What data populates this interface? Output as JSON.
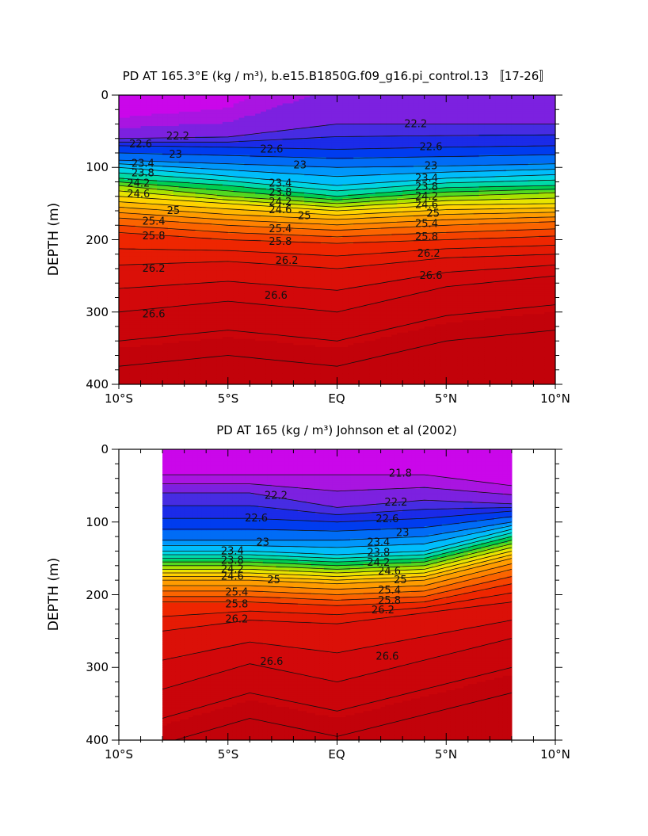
{
  "chart_data": [
    {
      "type": "heatmap",
      "title": "PD AT 165.3°E (kg / m³), b.e15.B1850G.f09_g16.pi_control.13 〚17-26〛",
      "xlabel": "",
      "ylabel": "DEPTH (m)",
      "xlim": [
        -10,
        10
      ],
      "ylim": [
        400,
        0
      ],
      "data_x_range": [
        -10,
        10
      ],
      "x_tick_labels": [
        "10°S",
        "5°S",
        "EQ",
        "5°N",
        "10°N"
      ],
      "x_tick_values": [
        -10,
        -5,
        0,
        5,
        10
      ],
      "y_tick_labels": [
        "0",
        "100",
        "200",
        "300",
        "400"
      ],
      "y_tick_values": [
        0,
        100,
        200,
        300,
        400
      ],
      "contour_interval": 0.2,
      "contour_levels_labeled": [
        "22.2",
        "22.6",
        "23",
        "23.4",
        "23.8",
        "24.2",
        "24.6",
        "25",
        "25.4",
        "25.8",
        "26.2",
        "26.6"
      ],
      "isopycnal_depth_profiles": [
        {
          "level": 22.2,
          "x": [
            -10,
            -5,
            0,
            5,
            10
          ],
          "depth": [
            60,
            58,
            40,
            40,
            40
          ]
        },
        {
          "level": 22.6,
          "x": [
            -10,
            -5,
            0,
            5,
            10
          ],
          "depth": [
            70,
            72,
            75,
            72,
            70
          ]
        },
        {
          "level": 23.0,
          "x": [
            -10,
            -5,
            0,
            5,
            10
          ],
          "depth": [
            90,
            95,
            100,
            98,
            95
          ]
        },
        {
          "level": 23.4,
          "x": [
            -10,
            -5,
            0,
            5,
            10
          ],
          "depth": [
            100,
            112,
            125,
            115,
            110
          ]
        },
        {
          "level": 23.8,
          "x": [
            -10,
            -5,
            0,
            5,
            10
          ],
          "depth": [
            115,
            125,
            140,
            128,
            125
          ]
        },
        {
          "level": 24.2,
          "x": [
            -10,
            -5,
            0,
            5,
            10
          ],
          "depth": [
            125,
            140,
            150,
            140,
            135
          ]
        },
        {
          "level": 24.6,
          "x": [
            -10,
            -5,
            0,
            5,
            10
          ],
          "depth": [
            140,
            150,
            160,
            152,
            150
          ]
        },
        {
          "level": 25.0,
          "x": [
            -10,
            -5,
            0,
            5,
            10
          ],
          "depth": [
            155,
            165,
            172,
            165,
            162
          ]
        },
        {
          "level": 25.4,
          "x": [
            -10,
            -5,
            0,
            5,
            10
          ],
          "depth": [
            170,
            180,
            187,
            180,
            175
          ]
        },
        {
          "level": 25.8,
          "x": [
            -10,
            -5,
            0,
            5,
            10
          ],
          "depth": [
            190,
            200,
            205,
            200,
            195
          ]
        },
        {
          "level": 26.2,
          "x": [
            -10,
            -5,
            0,
            5,
            10
          ],
          "depth": [
            235,
            230,
            240,
            225,
            220
          ]
        },
        {
          "level": 26.6,
          "x": [
            -10,
            -5,
            0,
            5,
            10
          ],
          "depth": [
            300,
            285,
            300,
            265,
            250
          ]
        }
      ]
    },
    {
      "type": "heatmap",
      "title": "PD AT 165 (kg / m³) Johnson et al (2002)",
      "xlabel": "",
      "ylabel": "DEPTH (m)",
      "xlim": [
        -10,
        10
      ],
      "ylim": [
        400,
        0
      ],
      "data_x_range": [
        -8,
        8
      ],
      "x_tick_labels": [
        "10°S",
        "5°S",
        "EQ",
        "5°N",
        "10°N"
      ],
      "x_tick_values": [
        -10,
        -5,
        0,
        5,
        10
      ],
      "y_tick_labels": [
        "0",
        "100",
        "200",
        "300",
        "400"
      ],
      "y_tick_values": [
        0,
        100,
        200,
        300,
        400
      ],
      "contour_interval": 0.2,
      "contour_levels_labeled": [
        "21.8",
        "22.2",
        "22.6",
        "23",
        "23.4",
        "23.8",
        "24.2",
        "24.6",
        "25",
        "25.4",
        "25.8",
        "26.2",
        "26.6"
      ],
      "isopycnal_depth_profiles": [
        {
          "level": 21.8,
          "x": [
            -8,
            -4,
            0,
            4,
            8
          ],
          "depth": [
            35,
            35,
            35,
            35,
            50
          ]
        },
        {
          "level": 22.2,
          "x": [
            -8,
            -4,
            0,
            4,
            8
          ],
          "depth": [
            60,
            60,
            80,
            70,
            75
          ]
        },
        {
          "level": 22.6,
          "x": [
            -8,
            -4,
            0,
            4,
            8
          ],
          "depth": [
            95,
            95,
            100,
            95,
            85
          ]
        },
        {
          "level": 23.0,
          "x": [
            -8,
            -4,
            0,
            4,
            8
          ],
          "depth": [
            125,
            125,
            125,
            120,
            100
          ]
        },
        {
          "level": 23.4,
          "x": [
            -8,
            -4,
            0,
            4,
            8
          ],
          "depth": [
            140,
            140,
            145,
            140,
            110
          ]
        },
        {
          "level": 23.8,
          "x": [
            -8,
            -4,
            0,
            4,
            8
          ],
          "depth": [
            150,
            150,
            155,
            150,
            120
          ]
        },
        {
          "level": 24.2,
          "x": [
            -8,
            -4,
            0,
            4,
            8
          ],
          "depth": [
            160,
            160,
            165,
            160,
            130
          ]
        },
        {
          "level": 24.6,
          "x": [
            -8,
            -4,
            0,
            4,
            8
          ],
          "depth": [
            170,
            170,
            175,
            170,
            140
          ]
        },
        {
          "level": 25.0,
          "x": [
            -8,
            -4,
            0,
            4,
            8
          ],
          "depth": [
            180,
            180,
            185,
            180,
            150
          ]
        },
        {
          "level": 25.4,
          "x": [
            -8,
            -4,
            0,
            4,
            8
          ],
          "depth": [
            195,
            195,
            200,
            195,
            165
          ]
        },
        {
          "level": 25.8,
          "x": [
            -8,
            -4,
            0,
            4,
            8
          ],
          "depth": [
            210,
            210,
            215,
            210,
            185
          ]
        },
        {
          "level": 26.2,
          "x": [
            -8,
            -4,
            0,
            4,
            8
          ],
          "depth": [
            250,
            235,
            240,
            225,
            210
          ]
        },
        {
          "level": 26.6,
          "x": [
            -8,
            -4,
            0,
            4,
            8
          ],
          "depth": [
            330,
            295,
            320,
            290,
            260
          ]
        }
      ]
    }
  ],
  "panels": [
    {
      "title": "PD AT 165.3°E (kg / m³), b.e15.B1850G.f09_g16.pi_control.13 〚17-26〛",
      "ylabel": "DEPTH (m)",
      "x_ticks": [
        "10°S",
        "5°S",
        "EQ",
        "5°N",
        "10°N"
      ],
      "y_ticks": [
        "0",
        "100",
        "200",
        "300",
        "400"
      ],
      "contour_labels": [
        {
          "text": "22.2",
          "x": -7.3,
          "d": 57
        },
        {
          "text": "22.2",
          "x": 3.6,
          "d": 40
        },
        {
          "text": "22.6",
          "x": -9.0,
          "d": 68
        },
        {
          "text": "22.6",
          "x": -3.0,
          "d": 75
        },
        {
          "text": "22.6",
          "x": 4.3,
          "d": 72
        },
        {
          "text": "23",
          "x": -7.4,
          "d": 82
        },
        {
          "text": "23",
          "x": -1.7,
          "d": 97
        },
        {
          "text": "23",
          "x": 4.3,
          "d": 98
        },
        {
          "text": "23.4",
          "x": -8.9,
          "d": 95
        },
        {
          "text": "23.4",
          "x": -2.6,
          "d": 122
        },
        {
          "text": "23.4",
          "x": 4.1,
          "d": 115
        },
        {
          "text": "23.8",
          "x": -8.9,
          "d": 108
        },
        {
          "text": "23.8",
          "x": -2.6,
          "d": 135
        },
        {
          "text": "23.8",
          "x": 4.1,
          "d": 127
        },
        {
          "text": "24.2",
          "x": -9.1,
          "d": 122
        },
        {
          "text": "24.2",
          "x": -2.6,
          "d": 148
        },
        {
          "text": "24.2",
          "x": 4.1,
          "d": 140
        },
        {
          "text": "24.6",
          "x": -9.1,
          "d": 137
        },
        {
          "text": "24.6",
          "x": -2.6,
          "d": 159
        },
        {
          "text": "24.6",
          "x": 4.1,
          "d": 152
        },
        {
          "text": "25",
          "x": -7.5,
          "d": 160
        },
        {
          "text": "25",
          "x": -1.5,
          "d": 167
        },
        {
          "text": "25",
          "x": 4.4,
          "d": 164
        },
        {
          "text": "25.4",
          "x": -8.4,
          "d": 175
        },
        {
          "text": "25.4",
          "x": -2.6,
          "d": 185
        },
        {
          "text": "25.4",
          "x": 4.1,
          "d": 178
        },
        {
          "text": "25.8",
          "x": -8.4,
          "d": 195
        },
        {
          "text": "25.8",
          "x": -2.6,
          "d": 203
        },
        {
          "text": "25.8",
          "x": 4.1,
          "d": 196
        },
        {
          "text": "26.2",
          "x": -8.4,
          "d": 240
        },
        {
          "text": "26.2",
          "x": -2.3,
          "d": 229
        },
        {
          "text": "26.2",
          "x": 4.2,
          "d": 219
        },
        {
          "text": "26.6",
          "x": -8.4,
          "d": 303
        },
        {
          "text": "26.6",
          "x": -2.8,
          "d": 277
        },
        {
          "text": "26.6",
          "x": 4.3,
          "d": 250
        }
      ]
    },
    {
      "title": "PD AT 165 (kg / m³) Johnson et al (2002)",
      "ylabel": "DEPTH (m)",
      "x_ticks": [
        "10°S",
        "5°S",
        "EQ",
        "5°N",
        "10°N"
      ],
      "y_ticks": [
        "0",
        "100",
        "200",
        "300",
        "400"
      ],
      "contour_labels": [
        {
          "text": "21.8",
          "x": 2.9,
          "d": 33
        },
        {
          "text": "22.2",
          "x": -2.8,
          "d": 64
        },
        {
          "text": "22.2",
          "x": 2.7,
          "d": 73
        },
        {
          "text": "22.6",
          "x": -3.7,
          "d": 95
        },
        {
          "text": "22.6",
          "x": 2.3,
          "d": 96
        },
        {
          "text": "23",
          "x": 3.0,
          "d": 115
        },
        {
          "text": "23",
          "x": -3.4,
          "d": 128
        },
        {
          "text": "23.4",
          "x": 1.9,
          "d": 128
        },
        {
          "text": "23.4",
          "x": -4.8,
          "d": 140
        },
        {
          "text": "23.8",
          "x": 1.9,
          "d": 142
        },
        {
          "text": "23.8",
          "x": -4.8,
          "d": 153
        },
        {
          "text": "24.2",
          "x": 1.9,
          "d": 156
        },
        {
          "text": "24.2",
          "x": -4.8,
          "d": 165
        },
        {
          "text": "24.6",
          "x": 2.4,
          "d": 168
        },
        {
          "text": "24.6",
          "x": -4.8,
          "d": 175
        },
        {
          "text": "25",
          "x": 2.9,
          "d": 180
        },
        {
          "text": "25",
          "x": -2.9,
          "d": 180
        },
        {
          "text": "25.4",
          "x": 2.4,
          "d": 194
        },
        {
          "text": "25.4",
          "x": -4.6,
          "d": 197
        },
        {
          "text": "25.8",
          "x": 2.4,
          "d": 208
        },
        {
          "text": "25.8",
          "x": -4.6,
          "d": 213
        },
        {
          "text": "26.2",
          "x": -4.6,
          "d": 234
        },
        {
          "text": "26.2",
          "x": 2.1,
          "d": 221
        },
        {
          "text": "26.6",
          "x": -3.0,
          "d": 292
        },
        {
          "text": "26.6",
          "x": 2.3,
          "d": 285
        }
      ]
    }
  ]
}
